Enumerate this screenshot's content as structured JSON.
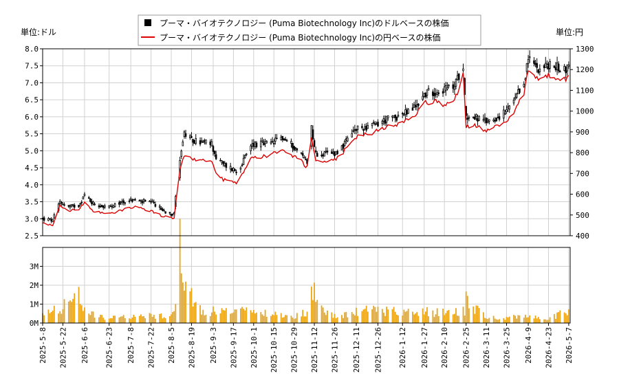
{
  "chart_data": {
    "type": "line",
    "legend": {
      "placement": "top-center",
      "entries": [
        {
          "name": "プーマ・バイオテクノロジー (Puma Biotechnology Inc)のドルベースの株価",
          "color": "#000000",
          "marker": "square"
        },
        {
          "name": "プーマ・バイオテクノロジー (Puma Biotechnology Inc)の円ベースの株価",
          "color": "#dd0000",
          "marker": "line"
        }
      ]
    },
    "left_unit": "単位:ドル",
    "right_unit": "単位:円",
    "price_ylim": [
      2.5,
      8.0
    ],
    "price_yticks": [
      "2.5",
      "3.0",
      "3.5",
      "4.0",
      "4.5",
      "5.0",
      "5.5",
      "6.0",
      "6.5",
      "7.0",
      "7.5",
      "8.0"
    ],
    "yen_ylim": [
      400,
      1300
    ],
    "yen_yticks": [
      "400",
      "500",
      "600",
      "700",
      "800",
      "900",
      "1000",
      "1100",
      "1200",
      "1300"
    ],
    "volume_ylim": [
      0,
      4000000
    ],
    "volume_yticks": [
      "0M",
      "1M",
      "2M",
      "3M"
    ],
    "grid": true,
    "x_date_ticks": [
      "2025-5-8",
      "2025-5-22",
      "2025-6-6",
      "2025-6-23",
      "2025-7-8",
      "2025-7-22",
      "2025-8-5",
      "2025-8-19",
      "2025-9-3",
      "2025-9-17",
      "2025-10-1",
      "2025-10-15",
      "2025-10-29",
      "2025-11-12",
      "2025-11-26",
      "2025-12-11",
      "2025-12-26",
      "2026-1-12",
      "2026-1-27",
      "2026-2-10",
      "2026-2-25",
      "2026-3-11",
      "2026-3-25",
      "2026-4-9",
      "2026-4-23",
      "2026-5-7"
    ],
    "x_range": [
      "2025-5-8",
      "2026-5-8"
    ],
    "price_key_points": [
      [
        "2025-5-8",
        3.0
      ],
      [
        "2025-5-15",
        2.95
      ],
      [
        "2025-5-20",
        3.5
      ],
      [
        "2025-5-26",
        3.35
      ],
      [
        "2025-6-2",
        3.4
      ],
      [
        "2025-6-6",
        3.7
      ],
      [
        "2025-6-12",
        3.45
      ],
      [
        "2025-6-20",
        3.35
      ],
      [
        "2025-6-26",
        3.35
      ],
      [
        "2025-7-2",
        3.5
      ],
      [
        "2025-7-10",
        3.55
      ],
      [
        "2025-7-17",
        3.5
      ],
      [
        "2025-7-24",
        3.45
      ],
      [
        "2025-7-30",
        3.25
      ],
      [
        "2025-8-5",
        3.15
      ],
      [
        "2025-8-7",
        3.2
      ],
      [
        "2025-8-11",
        4.8
      ],
      [
        "2025-8-14",
        5.5
      ],
      [
        "2025-8-19",
        5.3
      ],
      [
        "2025-8-26",
        5.25
      ],
      [
        "2025-9-2",
        5.2
      ],
      [
        "2025-9-5",
        4.8
      ],
      [
        "2025-9-10",
        4.6
      ],
      [
        "2025-9-15",
        4.5
      ],
      [
        "2025-9-19",
        4.4
      ],
      [
        "2025-9-24",
        4.7
      ],
      [
        "2025-9-30",
        5.2
      ],
      [
        "2025-10-7",
        5.2
      ],
      [
        "2025-10-13",
        5.2
      ],
      [
        "2025-10-20",
        5.4
      ],
      [
        "2025-10-27",
        5.2
      ],
      [
        "2025-11-3",
        4.9
      ],
      [
        "2025-11-7",
        4.7
      ],
      [
        "2025-11-10",
        5.7
      ],
      [
        "2025-11-13",
        4.9
      ],
      [
        "2025-11-20",
        4.9
      ],
      [
        "2025-11-27",
        4.95
      ],
      [
        "2025-12-3",
        5.2
      ],
      [
        "2025-12-10",
        5.6
      ],
      [
        "2025-12-17",
        5.7
      ],
      [
        "2025-12-24",
        5.75
      ],
      [
        "2025-12-31",
        5.9
      ],
      [
        "2026-1-7",
        6.0
      ],
      [
        "2026-1-14",
        6.1
      ],
      [
        "2026-1-21",
        6.3
      ],
      [
        "2026-1-28",
        6.7
      ],
      [
        "2026-2-4",
        6.75
      ],
      [
        "2026-2-10",
        6.8
      ],
      [
        "2026-2-17",
        6.9
      ],
      [
        "2026-2-23",
        7.55
      ],
      [
        "2026-2-25",
        6.0
      ],
      [
        "2026-3-3",
        6.0
      ],
      [
        "2026-3-10",
        5.85
      ],
      [
        "2026-3-17",
        5.95
      ],
      [
        "2026-3-24",
        6.1
      ],
      [
        "2026-3-31",
        6.5
      ],
      [
        "2026-4-6",
        7.0
      ],
      [
        "2026-4-9",
        7.7
      ],
      [
        "2026-4-16",
        7.45
      ],
      [
        "2026-4-23",
        7.5
      ],
      [
        "2026-4-30",
        7.45
      ],
      [
        "2026-5-5",
        7.4
      ],
      [
        "2026-5-7",
        7.5
      ]
    ],
    "yen_key_points": [
      [
        "2025-5-8",
        460
      ],
      [
        "2025-5-15",
        450
      ],
      [
        "2025-5-20",
        545
      ],
      [
        "2025-5-26",
        520
      ],
      [
        "2025-6-2",
        525
      ],
      [
        "2025-6-6",
        560
      ],
      [
        "2025-6-12",
        520
      ],
      [
        "2025-6-20",
        510
      ],
      [
        "2025-6-26",
        510
      ],
      [
        "2025-7-2",
        525
      ],
      [
        "2025-7-10",
        540
      ],
      [
        "2025-7-17",
        530
      ],
      [
        "2025-7-24",
        515
      ],
      [
        "2025-7-30",
        495
      ],
      [
        "2025-8-5",
        485
      ],
      [
        "2025-8-7",
        490
      ],
      [
        "2025-8-11",
        720
      ],
      [
        "2025-8-14",
        790
      ],
      [
        "2025-8-19",
        770
      ],
      [
        "2025-8-26",
        760
      ],
      [
        "2025-9-2",
        760
      ],
      [
        "2025-9-5",
        700
      ],
      [
        "2025-9-10",
        670
      ],
      [
        "2025-9-15",
        660
      ],
      [
        "2025-9-19",
        650
      ],
      [
        "2025-9-24",
        700
      ],
      [
        "2025-9-30",
        780
      ],
      [
        "2025-10-7",
        780
      ],
      [
        "2025-10-13",
        790
      ],
      [
        "2025-10-20",
        820
      ],
      [
        "2025-10-27",
        790
      ],
      [
        "2025-11-3",
        760
      ],
      [
        "2025-11-7",
        730
      ],
      [
        "2025-11-10",
        880
      ],
      [
        "2025-11-13",
        760
      ],
      [
        "2025-11-20",
        760
      ],
      [
        "2025-11-27",
        770
      ],
      [
        "2025-12-3",
        810
      ],
      [
        "2025-12-10",
        870
      ],
      [
        "2025-12-17",
        890
      ],
      [
        "2025-12-24",
        900
      ],
      [
        "2025-12-31",
        920
      ],
      [
        "2026-1-7",
        935
      ],
      [
        "2026-1-14",
        950
      ],
      [
        "2026-1-21",
        980
      ],
      [
        "2026-1-28",
        1040
      ],
      [
        "2026-2-4",
        1050
      ],
      [
        "2026-2-10",
        1030
      ],
      [
        "2026-2-17",
        1050
      ],
      [
        "2026-2-23",
        1175
      ],
      [
        "2026-2-25",
        930
      ],
      [
        "2026-3-3",
        930
      ],
      [
        "2026-3-10",
        905
      ],
      [
        "2026-3-17",
        920
      ],
      [
        "2026-3-24",
        940
      ],
      [
        "2026-3-31",
        1000
      ],
      [
        "2026-4-6",
        1090
      ],
      [
        "2026-4-9",
        1190
      ],
      [
        "2026-4-16",
        1155
      ],
      [
        "2026-4-23",
        1170
      ],
      [
        "2026-4-30",
        1160
      ],
      [
        "2026-5-5",
        1150
      ],
      [
        "2026-5-7",
        1160
      ]
    ],
    "volume_key_points": [
      [
        "2025-5-8",
        450000
      ],
      [
        "2025-5-20",
        800000
      ],
      [
        "2025-6-2",
        1500000
      ],
      [
        "2025-6-4",
        650000
      ],
      [
        "2025-6-20",
        250000
      ],
      [
        "2025-7-10",
        350000
      ],
      [
        "2025-8-5",
        400000
      ],
      [
        "2025-8-8",
        1400000
      ],
      [
        "2025-8-11",
        3900000
      ],
      [
        "2025-8-13",
        1600000
      ],
      [
        "2025-8-15",
        1700000
      ],
      [
        "2025-8-19",
        1550000
      ],
      [
        "2025-8-26",
        700000
      ],
      [
        "2025-9-10",
        600000
      ],
      [
        "2025-9-24",
        600000
      ],
      [
        "2025-10-15",
        450000
      ],
      [
        "2025-10-29",
        350000
      ],
      [
        "2025-11-7",
        600000
      ],
      [
        "2025-11-10",
        2350000
      ],
      [
        "2025-11-12",
        1900000
      ],
      [
        "2025-11-14",
        900000
      ],
      [
        "2025-11-26",
        350000
      ],
      [
        "2025-12-20",
        700000
      ],
      [
        "2026-1-27",
        600000
      ],
      [
        "2026-2-10",
        550000
      ],
      [
        "2026-2-24",
        700000
      ],
      [
        "2026-2-25",
        1700000
      ],
      [
        "2026-2-27",
        1100000
      ],
      [
        "2026-3-11",
        250000
      ],
      [
        "2026-4-9",
        350000
      ],
      [
        "2026-4-23",
        200000
      ],
      [
        "2026-5-7",
        750000
      ]
    ]
  }
}
